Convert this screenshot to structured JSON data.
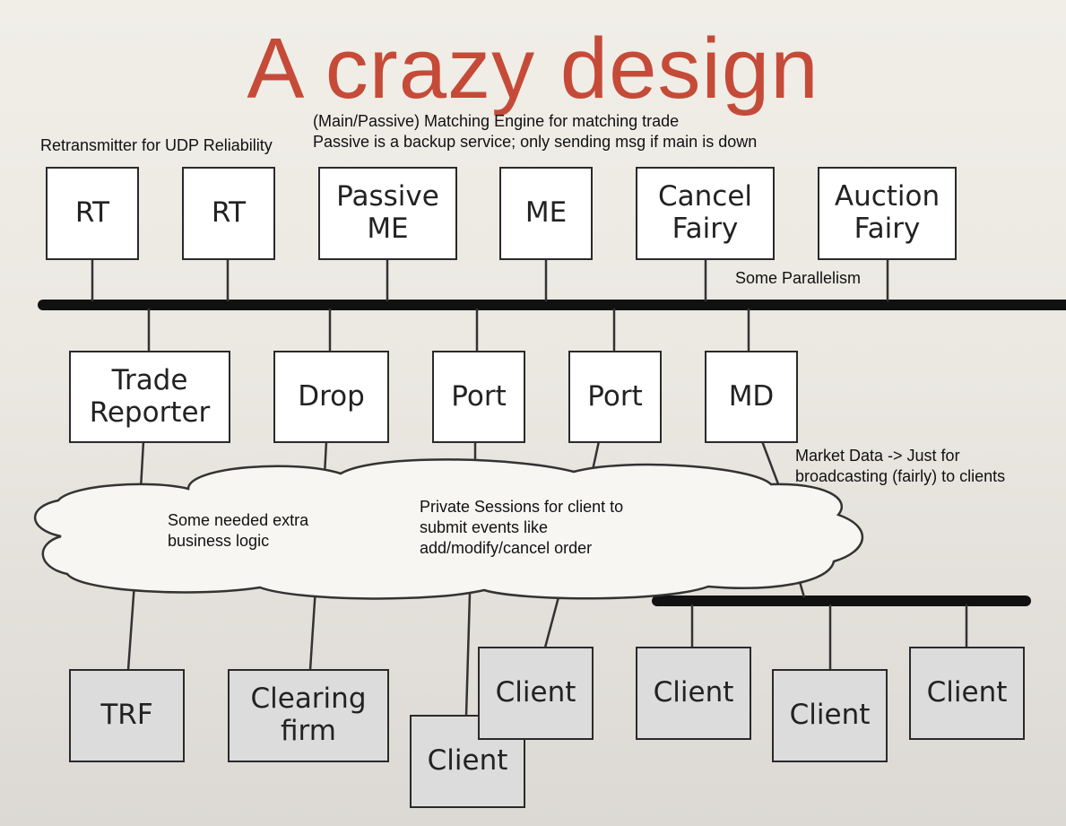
{
  "title": "A crazy design",
  "annotations": {
    "retransmitter": "Retransmitter for UDP Reliability",
    "matching_line1": "(Main/Passive) Matching Engine for matching trade",
    "matching_line2": "Passive is a backup service; only sending msg if main is down",
    "parallelism": "Some Parallelism",
    "market_data_line1": "Market Data -> Just for",
    "market_data_line2": "broadcasting (fairly) to clients",
    "business_line1": "Some needed extra",
    "business_line2": "business logic",
    "sessions_line1": "Private Sessions for client to",
    "sessions_line2": "submit events like",
    "sessions_line3": "add/modify/cancel order"
  },
  "top_row": [
    "RT",
    "RT",
    "Passive\nME",
    "ME",
    "Cancel\nFairy",
    "Auction\nFairy"
  ],
  "middle_row": [
    "Trade\nReporter",
    "Drop",
    "Port",
    "Port",
    "MD"
  ],
  "bottom_row": [
    "TRF",
    "Clearing\nfirm",
    "Client",
    "Client",
    "Client",
    "Client",
    "Client"
  ],
  "colors": {
    "title": "#c54b38",
    "bus": "#111111",
    "box_white": "#ffffff",
    "box_grey": "#dcdcdc"
  }
}
